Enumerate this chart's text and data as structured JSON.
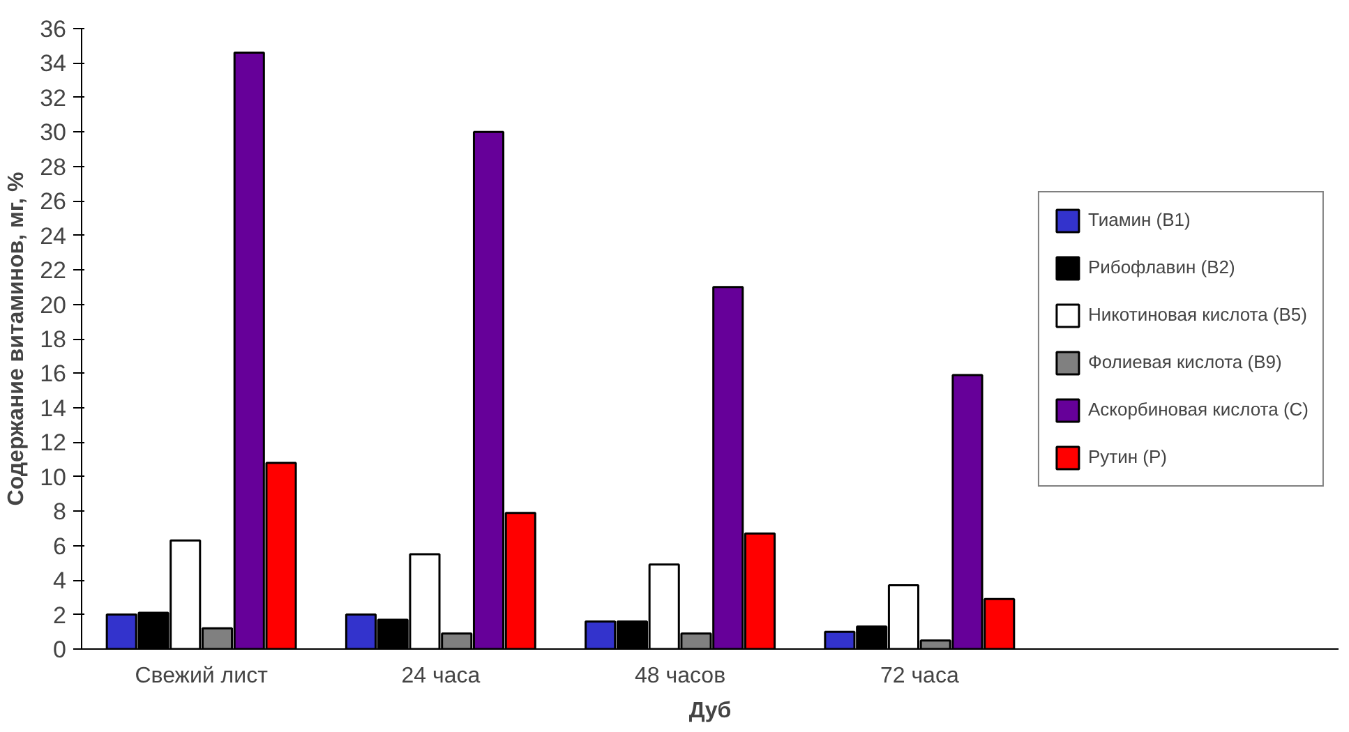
{
  "chart_data": {
    "type": "bar",
    "xlabel": "Дуб",
    "ylabel": "Содержание витаминов, мг, %",
    "categories": [
      "Свежий лист",
      "24 часа",
      "48 часов",
      "72 часа"
    ],
    "series": [
      {
        "name": "Тиамин (B1)",
        "color": "#3333cc",
        "values": [
          2.0,
          2.0,
          1.6,
          1.0
        ]
      },
      {
        "name": "Рибофлавин (B2)",
        "color": "#000000",
        "values": [
          2.1,
          1.7,
          1.6,
          1.3
        ]
      },
      {
        "name": "Никотиновая кислота (B5)",
        "color": "#ffffff",
        "values": [
          6.3,
          5.5,
          4.9,
          3.7
        ]
      },
      {
        "name": "Фолиевая кислота (B9)",
        "color": "#808080",
        "values": [
          1.2,
          0.9,
          0.9,
          0.5
        ]
      },
      {
        "name": "Аскорбиновая кислота (C)",
        "color": "#660099",
        "values": [
          34.6,
          30.0,
          21.0,
          15.9
        ]
      },
      {
        "name": "Рутин (P)",
        "color": "#ff0000",
        "values": [
          10.8,
          7.9,
          6.7,
          2.9
        ]
      }
    ],
    "ylim": [
      0,
      36
    ],
    "yticks": [
      0,
      2,
      4,
      6,
      8,
      10,
      12,
      14,
      16,
      18,
      20,
      22,
      24,
      26,
      28,
      30,
      32,
      34,
      36
    ],
    "grid": false,
    "legend": "right"
  }
}
